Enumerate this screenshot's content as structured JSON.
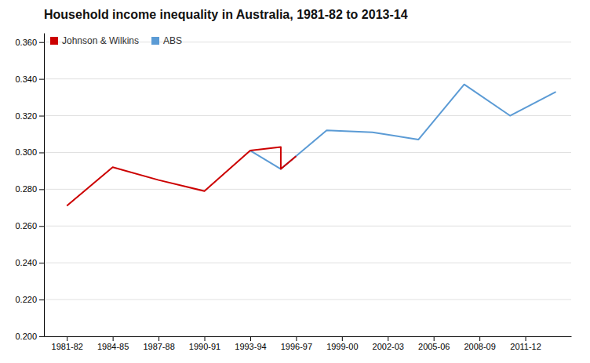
{
  "chart_data": {
    "type": "line",
    "title": "Household income inequality in Australia, 1981-82 to 2013-14",
    "series": [
      {
        "name": "Johnson & Wilkins",
        "color": "#cc0000",
        "x": [
          1981.5,
          1984.5,
          1987.5,
          1990.5,
          1993.5,
          1995.5,
          1995.5,
          1996.5
        ],
        "values": [
          0.271,
          0.292,
          0.285,
          0.279,
          0.301,
          0.303,
          0.291,
          0.298
        ]
      },
      {
        "name": "ABS",
        "color": "#5b9bd5",
        "x": [
          1993.5,
          1995.5,
          1998.5,
          2001.5,
          2004.5,
          2007.5,
          2010.5,
          2013.5
        ],
        "values": [
          0.301,
          0.291,
          0.312,
          0.311,
          0.307,
          0.337,
          0.32,
          0.333
        ]
      }
    ],
    "xlim": [
      1980.0,
      2014.5
    ],
    "xticks": [
      {
        "value": 1981.5,
        "label": "1981-82"
      },
      {
        "value": 1984.5,
        "label": "1984-85"
      },
      {
        "value": 1987.5,
        "label": "1987-88"
      },
      {
        "value": 1990.5,
        "label": "1990-91"
      },
      {
        "value": 1993.5,
        "label": "1993-94"
      },
      {
        "value": 1996.5,
        "label": "1996-97"
      },
      {
        "value": 1999.5,
        "label": "1999-00"
      },
      {
        "value": 2002.5,
        "label": "2002-03"
      },
      {
        "value": 2005.5,
        "label": "2005-06"
      },
      {
        "value": 2008.5,
        "label": "2008-09"
      },
      {
        "value": 2011.5,
        "label": "2011-12"
      }
    ],
    "ylim": [
      0.2,
      0.365
    ],
    "yticks": [
      {
        "value": 0.2,
        "label": "0.200"
      },
      {
        "value": 0.22,
        "label": "0.220"
      },
      {
        "value": 0.24,
        "label": "0.240"
      },
      {
        "value": 0.26,
        "label": "0.260"
      },
      {
        "value": 0.28,
        "label": "0.280"
      },
      {
        "value": 0.3,
        "label": "0.300"
      },
      {
        "value": 0.32,
        "label": "0.320"
      },
      {
        "value": 0.34,
        "label": "0.340"
      },
      {
        "value": 0.36,
        "label": "0.360"
      }
    ],
    "grid": true,
    "legend": "upper left"
  }
}
